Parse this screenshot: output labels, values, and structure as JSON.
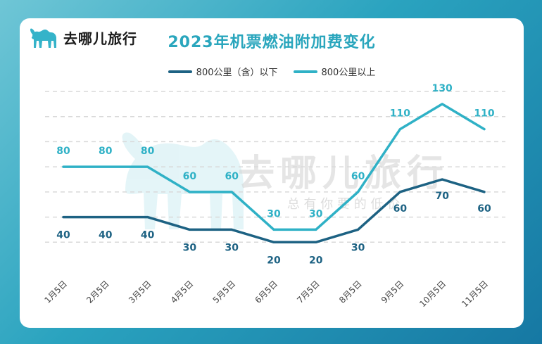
{
  "brand": {
    "logo_text": "去哪儿旅行",
    "watermark_main": "去哪儿旅行",
    "watermark_sub": "总 有 你 要 的 低 价"
  },
  "colors": {
    "background_start": "#6fc6d6",
    "background_end": "#1678a3",
    "series_dark": "#1d6283",
    "series_light": "#2fb1c6",
    "title": "#2aa6bd"
  },
  "chart_data": {
    "type": "line",
    "title": "2023年机票燃油附加费变化",
    "categories": [
      "1月5日",
      "2月5日",
      "3月5日",
      "4月5日",
      "5月5日",
      "6月5日",
      "7月5日",
      "8月5日",
      "9月5日",
      "10月5日",
      "11月5日"
    ],
    "series": [
      {
        "name": "800公里（含）以下",
        "values": [
          40,
          40,
          40,
          30,
          30,
          20,
          20,
          30,
          60,
          70,
          60
        ]
      },
      {
        "name": "800公里以上",
        "values": [
          80,
          80,
          80,
          60,
          60,
          30,
          30,
          60,
          110,
          130,
          110
        ]
      }
    ],
    "ylim": [
      0,
      140
    ],
    "grid": true,
    "legend_position": "top-center"
  }
}
